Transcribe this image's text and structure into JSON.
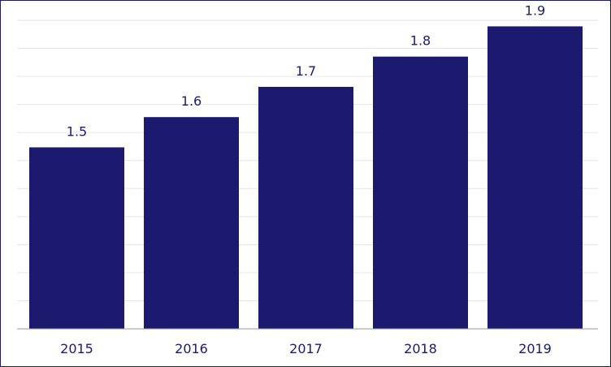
{
  "colors": {
    "bar": "#1b1a6f",
    "text": "#1b1a6f",
    "grid": "#e6e6e6",
    "border": "#1b1a6f"
  },
  "chart_data": {
    "type": "bar",
    "title": "",
    "xlabel": "",
    "ylabel": "",
    "categories": [
      "2015",
      "2016",
      "2017",
      "2018",
      "2019"
    ],
    "values": [
      1.5,
      1.6,
      1.7,
      1.8,
      1.9
    ],
    "value_labels": [
      "1.5",
      "1.6",
      "1.7",
      "1.8",
      "1.9"
    ],
    "ylim": [
      0.9,
      1.92
    ],
    "grid": true,
    "legend": "none"
  }
}
